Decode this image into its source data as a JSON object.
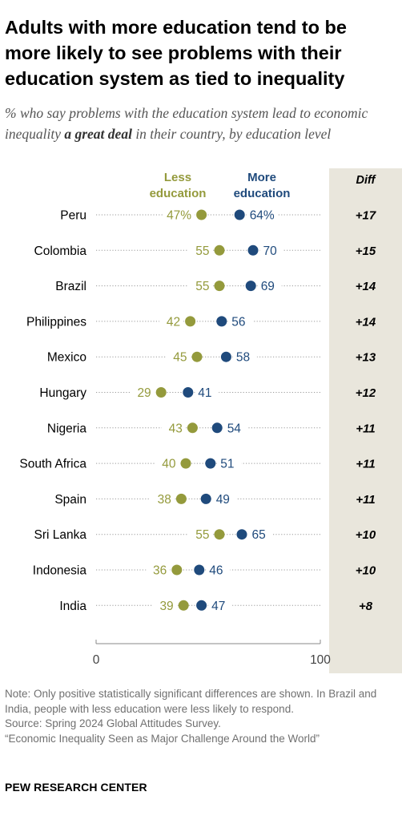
{
  "title": "Adults with more education tend to be more likely to see problems with their education system as tied to inequality",
  "subtitle": {
    "before": "% who say problems with the education system lead to economic inequality ",
    "emphasis": "a great deal",
    "after": " in their country, by education level"
  },
  "colors": {
    "less": "#949a3c",
    "more": "#1f4a7c",
    "diff_bg": "#e9e6dc",
    "dots_line": "#9a9a9a",
    "axis": "#888888"
  },
  "chart_data": {
    "type": "dot-plot",
    "xlim": [
      0,
      100
    ],
    "ticks": [
      "0",
      "100"
    ],
    "legend": {
      "less": "Less education",
      "more": "More education"
    },
    "diff_header": "Diff",
    "categories": [
      "Peru",
      "Colombia",
      "Brazil",
      "Philippines",
      "Mexico",
      "Hungary",
      "Nigeria",
      "South Africa",
      "Spain",
      "Sri Lanka",
      "Indonesia",
      "India"
    ],
    "series": [
      {
        "name": "Less education",
        "values": [
          47,
          55,
          55,
          42,
          45,
          29,
          43,
          40,
          38,
          55,
          36,
          39
        ]
      },
      {
        "name": "More education",
        "values": [
          64,
          70,
          69,
          56,
          58,
          41,
          54,
          51,
          49,
          65,
          46,
          47
        ]
      }
    ],
    "first_row_suffix": "%",
    "diff": [
      "+17",
      "+15",
      "+14",
      "+14",
      "+13",
      "+12",
      "+11",
      "+11",
      "+11",
      "+10",
      "+10",
      "+8"
    ]
  },
  "notes": {
    "note": "Note: Only positive statistically significant differences are shown. In Brazil and India, people with less education were less likely to respond.",
    "source": "Source: Spring 2024 Global Attitudes Survey.",
    "report": "“Economic Inequality Seen as Major Challenge Around the World”"
  },
  "brand": "PEW RESEARCH CENTER"
}
